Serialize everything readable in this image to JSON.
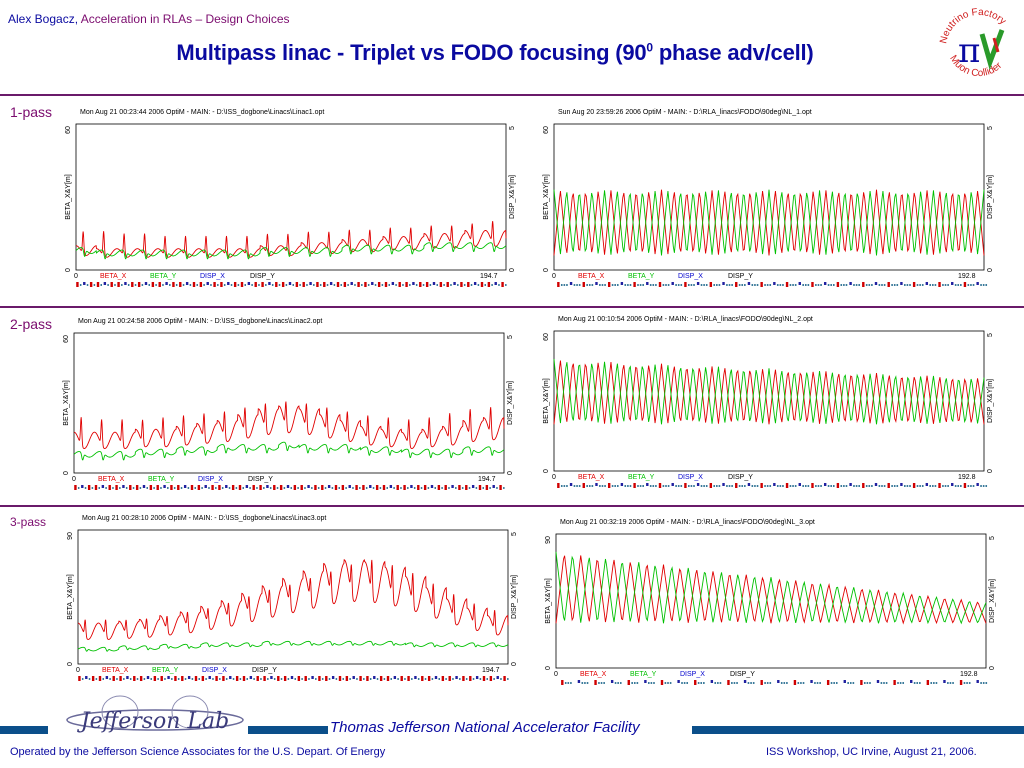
{
  "header": {
    "author": "Alex Bogacz,",
    "topic": "Acceleration in RLAs – Design Choices"
  },
  "title": {
    "main": "Multipass linac - Triplet vs FODO focusing (90",
    "sup": "0",
    "tail": " phase adv/cell)"
  },
  "logo": {
    "top": "Neutrino Factory",
    "bottom": "Muon Collider",
    "symbol": "π",
    "name": "nufact-mc-logo"
  },
  "pass_labels": [
    "1-pass",
    "2-pass",
    "3-pass"
  ],
  "footer": {
    "center": "Thomas Jefferson National Accelerator Facility",
    "left": "Operated by the Jefferson Science Associates for the U.S. Depart. Of Energy",
    "right": "ISS Workshop, UC Irvine,  August 21, 2006.",
    "jlab_name": "Jefferson Lab"
  },
  "colors": {
    "beta_x": "#e00000",
    "beta_y": "#00c000",
    "disp_x": "#0000cc",
    "disp_y": "#000000",
    "brand": "#0a0aa0",
    "accent": "#7b0b6e"
  },
  "chart_data": [
    {
      "type": "line",
      "kind": "triplet",
      "header": "Mon Aug 21 00:23:44 2006    OptiM - MAIN:  - D:\\ISS_dogbone\\Linacs\\Linac1.opt",
      "ylabel": "BETA_X&Y[m]",
      "y2label": "DISP_X&Y[m]",
      "ylim": [
        0,
        60
      ],
      "y2lim": [
        0,
        5
      ],
      "xlim": [
        0,
        194.7
      ],
      "x_ticks": [
        "0",
        "194.7"
      ],
      "y_ticks": [
        "0",
        "60"
      ],
      "y2_ticks": [
        "0",
        "5"
      ],
      "legend": [
        "BETA_X",
        "BETA_Y",
        "DISP_X",
        "DISP_Y"
      ],
      "cells": 21,
      "beta_x_peaks": [
        17,
        17,
        16,
        16,
        15,
        15,
        15,
        15,
        15,
        16,
        16,
        17,
        17,
        18,
        18,
        19,
        19,
        20,
        20,
        21,
        22
      ],
      "beta_x_base": [
        8,
        7,
        7,
        7,
        7,
        7,
        7,
        7,
        7,
        8,
        8,
        9,
        9,
        10,
        10,
        11,
        11,
        12,
        12,
        13,
        13
      ],
      "beta_y_level": [
        8,
        7,
        7,
        7,
        7,
        7,
        7,
        7,
        7,
        8,
        8,
        8,
        8,
        9,
        9,
        9,
        9,
        10,
        10,
        10,
        10
      ],
      "beta_y_dip": 3
    },
    {
      "type": "line",
      "kind": "fodo",
      "header": "Sun Aug 20 23:59:26 2006    OptiM - MAIN:  - D:\\RLA_linacs\\FODO\\90deg\\NL_1.opt",
      "ylabel": "BETA_X&Y[m]",
      "y2label": "DISP_X&Y[m]",
      "ylim": [
        0,
        60
      ],
      "y2lim": [
        0,
        5
      ],
      "xlim": [
        0,
        192.8
      ],
      "x_ticks": [
        "0",
        "192.8"
      ],
      "y_ticks": [
        "0",
        "60"
      ],
      "y2_ticks": [
        "0",
        "5"
      ],
      "legend": [
        "BETA_X",
        "BETA_Y",
        "DISP_X",
        "DISP_Y"
      ],
      "periods": 17,
      "beta_max_start": 33,
      "beta_max_end": 33,
      "beta_min": 6
    },
    {
      "type": "line",
      "kind": "triplet",
      "header": "Mon Aug 21 00:24:58 2006    OptiM - MAIN:  - D:\\ISS_dogbone\\Linacs\\Linac2.opt",
      "ylabel": "BETA_X&Y[m]",
      "y2label": "DISP_X&Y[m]",
      "ylim": [
        0,
        60
      ],
      "y2lim": [
        0,
        5
      ],
      "xlim": [
        0,
        194.7
      ],
      "x_ticks": [
        "0",
        "194.7"
      ],
      "y_ticks": [
        "0",
        "60"
      ],
      "y2_ticks": [
        "0",
        "5"
      ],
      "legend": [
        "BETA_X",
        "BETA_Y",
        "DISP_X",
        "DISP_Y"
      ],
      "cells": 21,
      "beta_x_peaks": [
        26,
        25,
        25,
        25,
        26,
        27,
        28,
        29,
        31,
        33,
        34,
        33,
        31,
        29,
        27,
        26,
        25,
        26,
        28,
        30,
        31
      ],
      "beta_x_base": [
        14,
        14,
        14,
        15,
        15,
        16,
        17,
        18,
        20,
        22,
        23,
        22,
        20,
        18,
        16,
        15,
        14,
        15,
        16,
        18,
        19
      ],
      "beta_y_level": [
        8,
        8,
        8,
        9,
        9,
        10,
        10,
        11,
        11,
        11,
        12,
        11,
        11,
        11,
        10,
        10,
        9,
        9,
        9,
        10,
        10
      ],
      "beta_y_dip": 3
    },
    {
      "type": "line",
      "kind": "fodo",
      "header": "Mon Aug 21 00:10:54 2006    OptiM - MAIN:  - D:\\RLA_linacs\\FODO\\90deg\\NL_2.opt",
      "ylabel": "BETA_X&Y[m]",
      "y2label": "DISP_X&Y[m]",
      "ylim": [
        0,
        60
      ],
      "y2lim": [
        0,
        5
      ],
      "xlim": [
        0,
        192.8
      ],
      "x_ticks": [
        "0",
        "192.8"
      ],
      "y_ticks": [
        "0",
        "60"
      ],
      "y2_ticks": [
        "0",
        "5"
      ],
      "legend": [
        "BETA_X",
        "BETA_Y",
        "DISP_X",
        "DISP_Y"
      ],
      "periods": 17,
      "beta_max_start": 48,
      "beta_max_end": 40,
      "beta_min": 20
    },
    {
      "type": "line",
      "kind": "triplet",
      "header": "Mon Aug 21 00:28:10 2006    OptiM - MAIN:  - D:\\ISS_dogbone\\Linacs\\Linac3.opt",
      "ylabel": "BETA_X&Y[m]",
      "y2label": "DISP_X&Y[m]",
      "ylim": [
        0,
        90
      ],
      "y2lim": [
        0,
        5
      ],
      "xlim": [
        0,
        194.7
      ],
      "x_ticks": [
        "0",
        "194.7"
      ],
      "y_ticks": [
        "0",
        "90"
      ],
      "y2_ticks": [
        "0",
        "5"
      ],
      "legend": [
        "BETA_X",
        "BETA_Y",
        "DISP_X",
        "DISP_Y"
      ],
      "cells": 21,
      "beta_x_peaks": [
        33,
        33,
        33,
        34,
        36,
        39,
        42,
        46,
        51,
        56,
        60,
        65,
        70,
        75,
        78,
        74,
        68,
        60,
        52,
        45,
        40
      ],
      "beta_x_base": [
        22,
        22,
        23,
        24,
        26,
        28,
        31,
        34,
        38,
        42,
        46,
        50,
        54,
        56,
        55,
        52,
        47,
        41,
        35,
        30,
        26
      ],
      "beta_y_level": [
        10,
        10,
        11,
        11,
        12,
        12,
        13,
        13,
        13,
        14,
        14,
        14,
        14,
        14,
        14,
        14,
        13,
        13,
        13,
        13,
        13
      ],
      "beta_y_dip": 2
    },
    {
      "type": "line",
      "kind": "fodo",
      "header": "Mon Aug 21 00:32:19 2006    OptiM - MAIN:  - D:\\RLA_linacs\\FODO\\90deg\\NL_3.opt",
      "ylabel": "BETA_X&Y[m]",
      "y2label": "DISP_X&Y[m]",
      "ylim": [
        0,
        90
      ],
      "y2lim": [
        0,
        5
      ],
      "xlim": [
        0,
        192.8
      ],
      "x_ticks": [
        "0",
        "192.8"
      ],
      "y_ticks": [
        "0",
        "90"
      ],
      "y2_ticks": [
        "0",
        "5"
      ],
      "legend": [
        "BETA_X",
        "BETA_Y",
        "DISP_X",
        "DISP_Y"
      ],
      "periods": 13,
      "beta_max_start": 78,
      "beta_max_end": 44,
      "beta_min": 30
    }
  ]
}
